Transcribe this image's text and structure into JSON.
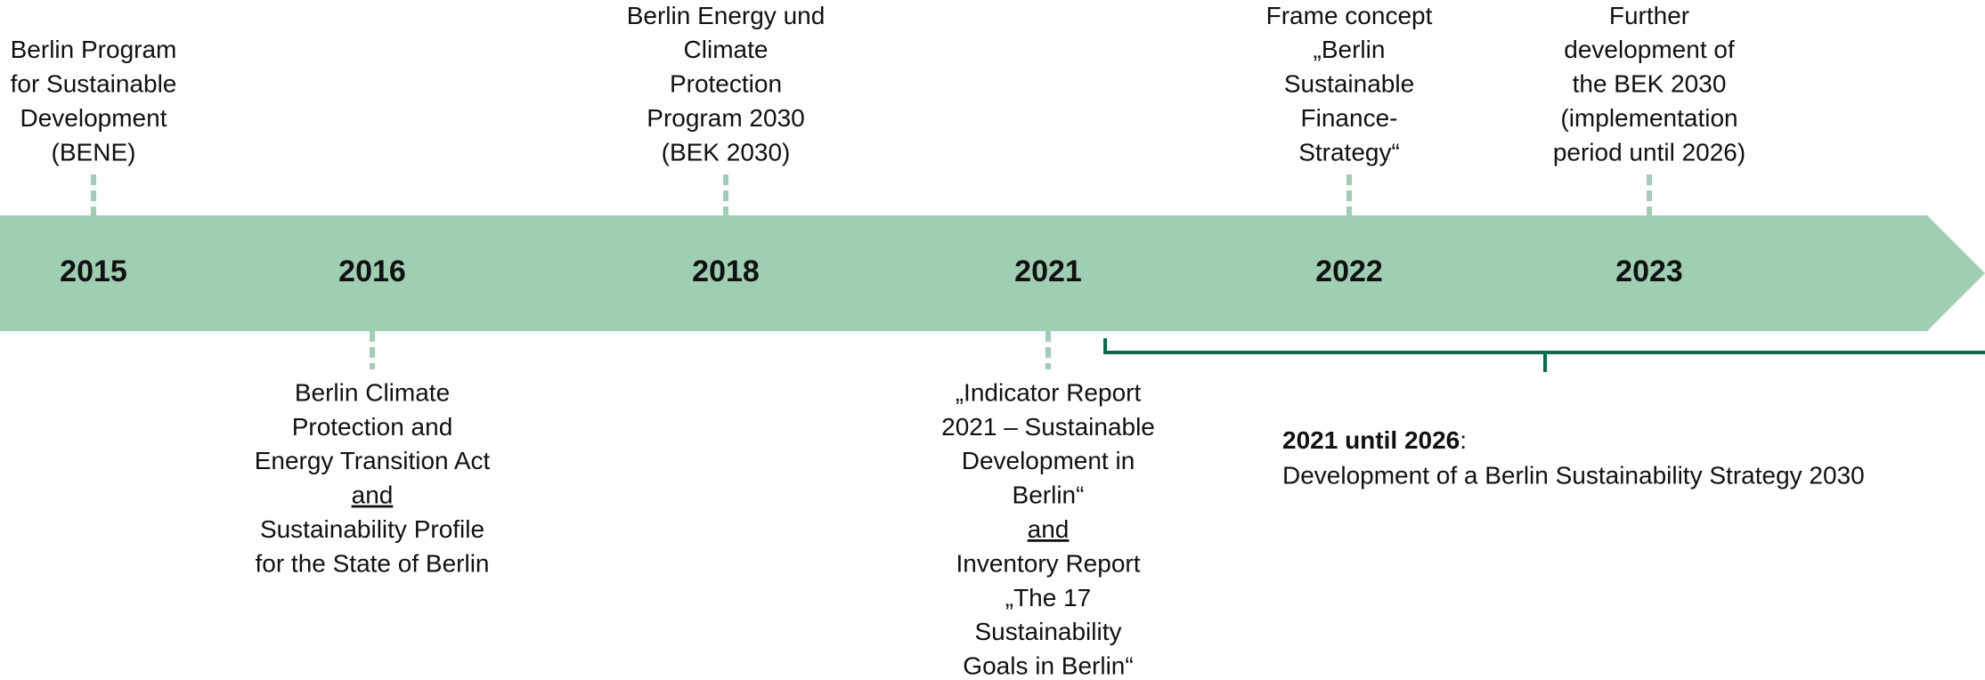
{
  "timeline": {
    "years": [
      {
        "label": "2015",
        "above": [
          "Berlin Program",
          "for Sustainable",
          "Development",
          "(BENE)"
        ]
      },
      {
        "label": "2016",
        "below": [
          "Berlin Climate",
          "Protection and",
          "Energy Transition Act",
          {
            "text": "and",
            "underline": true
          },
          "Sustainability Profile",
          "for the State of Berlin"
        ]
      },
      {
        "label": "2018",
        "above": [
          "Berlin Energy und",
          "Climate",
          "Protection",
          "Program 2030",
          "(BEK 2030)"
        ]
      },
      {
        "label": "2021",
        "below": [
          "„Indicator Report",
          "2021 – Sustainable",
          "Development in",
          "Berlin“",
          {
            "text": "and",
            "underline": true
          },
          "Inventory Report",
          "„The 17",
          "Sustainability",
          "Goals in Berlin“"
        ]
      },
      {
        "label": "2022",
        "above": [
          "Frame concept",
          "„Berlin",
          "Sustainable",
          "Finance-",
          "Strategy“"
        ]
      },
      {
        "label": "2023",
        "above": [
          "Further",
          "development of",
          "the BEK 2030",
          "(implementation",
          "period until 2026)"
        ]
      }
    ],
    "bracket_note": {
      "period": "2021 until 2026",
      "separator": ":",
      "text": "Development of a Berlin Sustainability Strategy 2030"
    }
  }
}
